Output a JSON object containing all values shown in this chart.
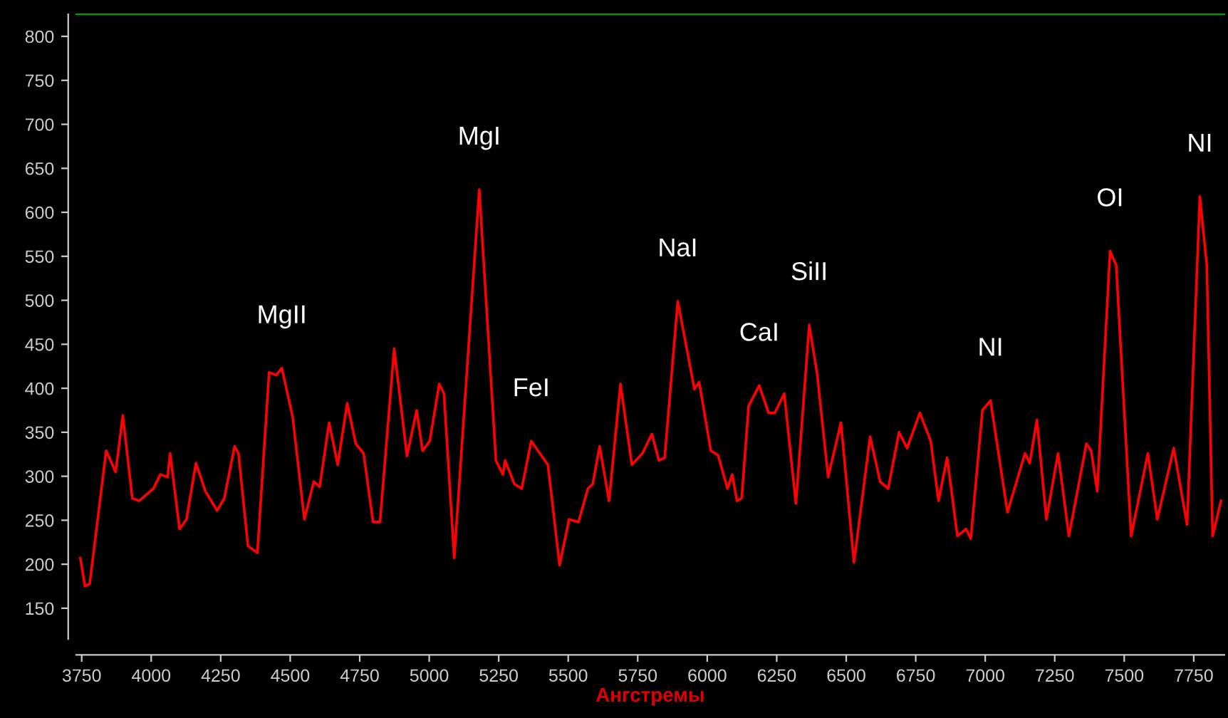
{
  "chart_data": {
    "type": "line",
    "xlabel": "Ангстремы",
    "x": [
      3745,
      3762,
      3779,
      3838,
      3872,
      3898,
      3932,
      3957,
      4008,
      4033,
      4059,
      4068,
      4102,
      4127,
      4161,
      4195,
      4237,
      4263,
      4300,
      4314,
      4348,
      4382,
      4424,
      4450,
      4470,
      4509,
      4551,
      4585,
      4606,
      4640,
      4671,
      4705,
      4736,
      4764,
      4798,
      4823,
      4874,
      4920,
      4955,
      4976,
      5002,
      5036,
      5053,
      5090,
      5180,
      5240,
      5265,
      5273,
      5307,
      5333,
      5367,
      5427,
      5469,
      5503,
      5537,
      5571,
      5588,
      5613,
      5647,
      5688,
      5729,
      5767,
      5801,
      5826,
      5847,
      5894,
      5954,
      5971,
      6013,
      6039,
      6073,
      6090,
      6107,
      6124,
      6149,
      6187,
      6221,
      6243,
      6277,
      6319,
      6367,
      6396,
      6435,
      6481,
      6528,
      6586,
      6622,
      6651,
      6690,
      6719,
      6765,
      6804,
      6832,
      6863,
      6900,
      6931,
      6948,
      6990,
      7019,
      7080,
      7143,
      7160,
      7186,
      7220,
      7262,
      7301,
      7364,
      7381,
      7403,
      7449,
      7471,
      7525,
      7585,
      7619,
      7678,
      7726,
      7772,
      7797,
      7818,
      7848
    ],
    "series": [
      {
        "color": "#ff0000",
        "values": [
          207,
          175,
          178,
          329,
          305,
          369,
          275,
          272,
          286,
          302,
          299,
          326,
          240,
          251,
          315,
          283,
          261,
          275,
          334,
          326,
          221,
          213,
          418,
          415,
          423,
          367,
          251,
          294,
          288,
          361,
          313,
          383,
          337,
          326,
          248,
          248,
          445,
          323,
          375,
          329,
          340,
          405,
          394,
          207,
          626,
          318,
          302,
          318,
          291,
          286,
          340,
          313,
          199,
          251,
          248,
          286,
          291,
          334,
          272,
          405,
          313,
          326,
          348,
          318,
          321,
          499,
          399,
          407,
          329,
          324,
          286,
          302,
          272,
          275,
          380,
          403,
          372,
          372,
          394,
          269,
          472,
          415,
          299,
          361,
          202,
          345,
          294,
          286,
          350,
          332,
          372,
          340,
          272,
          321,
          232,
          240,
          229,
          375,
          386,
          259,
          326,
          315,
          364,
          251,
          326,
          232,
          337,
          329,
          283,
          556,
          540,
          232,
          326,
          251,
          332,
          245,
          618,
          540,
          232,
          272
        ]
      }
    ],
    "xlim": [
      3730,
      7860
    ],
    "ylim": [
      115,
      825
    ],
    "xticks": [
      3750,
      4000,
      4250,
      4500,
      4750,
      5000,
      5250,
      5500,
      5750,
      6000,
      6250,
      6500,
      6750,
      7000,
      7250,
      7500,
      7750
    ],
    "yticks": [
      150,
      200,
      250,
      300,
      350,
      400,
      450,
      500,
      550,
      600,
      650,
      700,
      750,
      800
    ],
    "grid": false,
    "marker": "none",
    "line_style": "solid",
    "annotations": [
      {
        "text": "MgII",
        "x": 4470,
        "y": 423
      },
      {
        "text": "MgI",
        "x": 5180,
        "y": 626
      },
      {
        "text": "FeI",
        "x": 5367,
        "y": 340
      },
      {
        "text": "NaI",
        "x": 5894,
        "y": 499
      },
      {
        "text": "CaI",
        "x": 6187,
        "y": 403
      },
      {
        "text": "SiII",
        "x": 6367,
        "y": 472
      },
      {
        "text": "NI",
        "x": 7019,
        "y": 386
      },
      {
        "text": "OI",
        "x": 7449,
        "y": 556
      },
      {
        "text": "NI",
        "x": 7772,
        "y": 618
      }
    ]
  }
}
